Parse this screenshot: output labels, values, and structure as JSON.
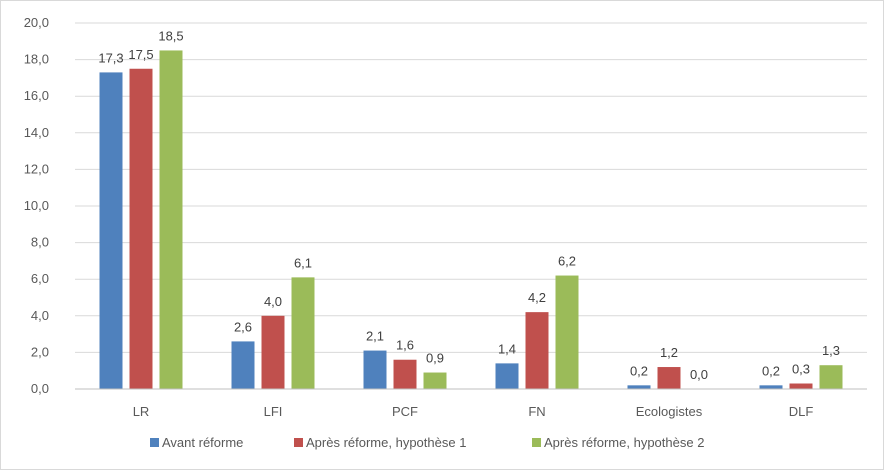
{
  "chart_data": {
    "type": "bar",
    "title": "",
    "xlabel": "",
    "ylabel": "",
    "ylim": [
      0,
      20
    ],
    "yticks": [
      "0,0",
      "2,0",
      "4,0",
      "6,0",
      "8,0",
      "10,0",
      "12,0",
      "14,0",
      "16,0",
      "18,0",
      "20,0"
    ],
    "grid": true,
    "legend_position": "bottom",
    "categories": [
      "LR",
      "LFI",
      "PCF",
      "FN",
      "Ecologistes",
      "DLF"
    ],
    "series": [
      {
        "name": "Avant réforme",
        "color": "#4f81bd",
        "values": [
          17.3,
          2.6,
          2.1,
          1.4,
          0.2,
          0.2
        ],
        "labels": [
          "17,3",
          "2,6",
          "2,1",
          "1,4",
          "0,2",
          "0,2"
        ]
      },
      {
        "name": "Après réforme, hypothèse 1",
        "color": "#c0504d",
        "values": [
          17.5,
          4.0,
          1.6,
          4.2,
          1.2,
          0.3
        ],
        "labels": [
          "17,5",
          "4,0",
          "1,6",
          "4,2",
          "1,2",
          "0,3"
        ]
      },
      {
        "name": "Après réforme, hypothèse 2",
        "color": "#9bbb59",
        "values": [
          18.5,
          6.1,
          0.9,
          6.2,
          0.0,
          1.3
        ],
        "labels": [
          "18,5",
          "6,1",
          "0,9",
          "6,2",
          "0,0",
          "1,3"
        ]
      }
    ]
  }
}
